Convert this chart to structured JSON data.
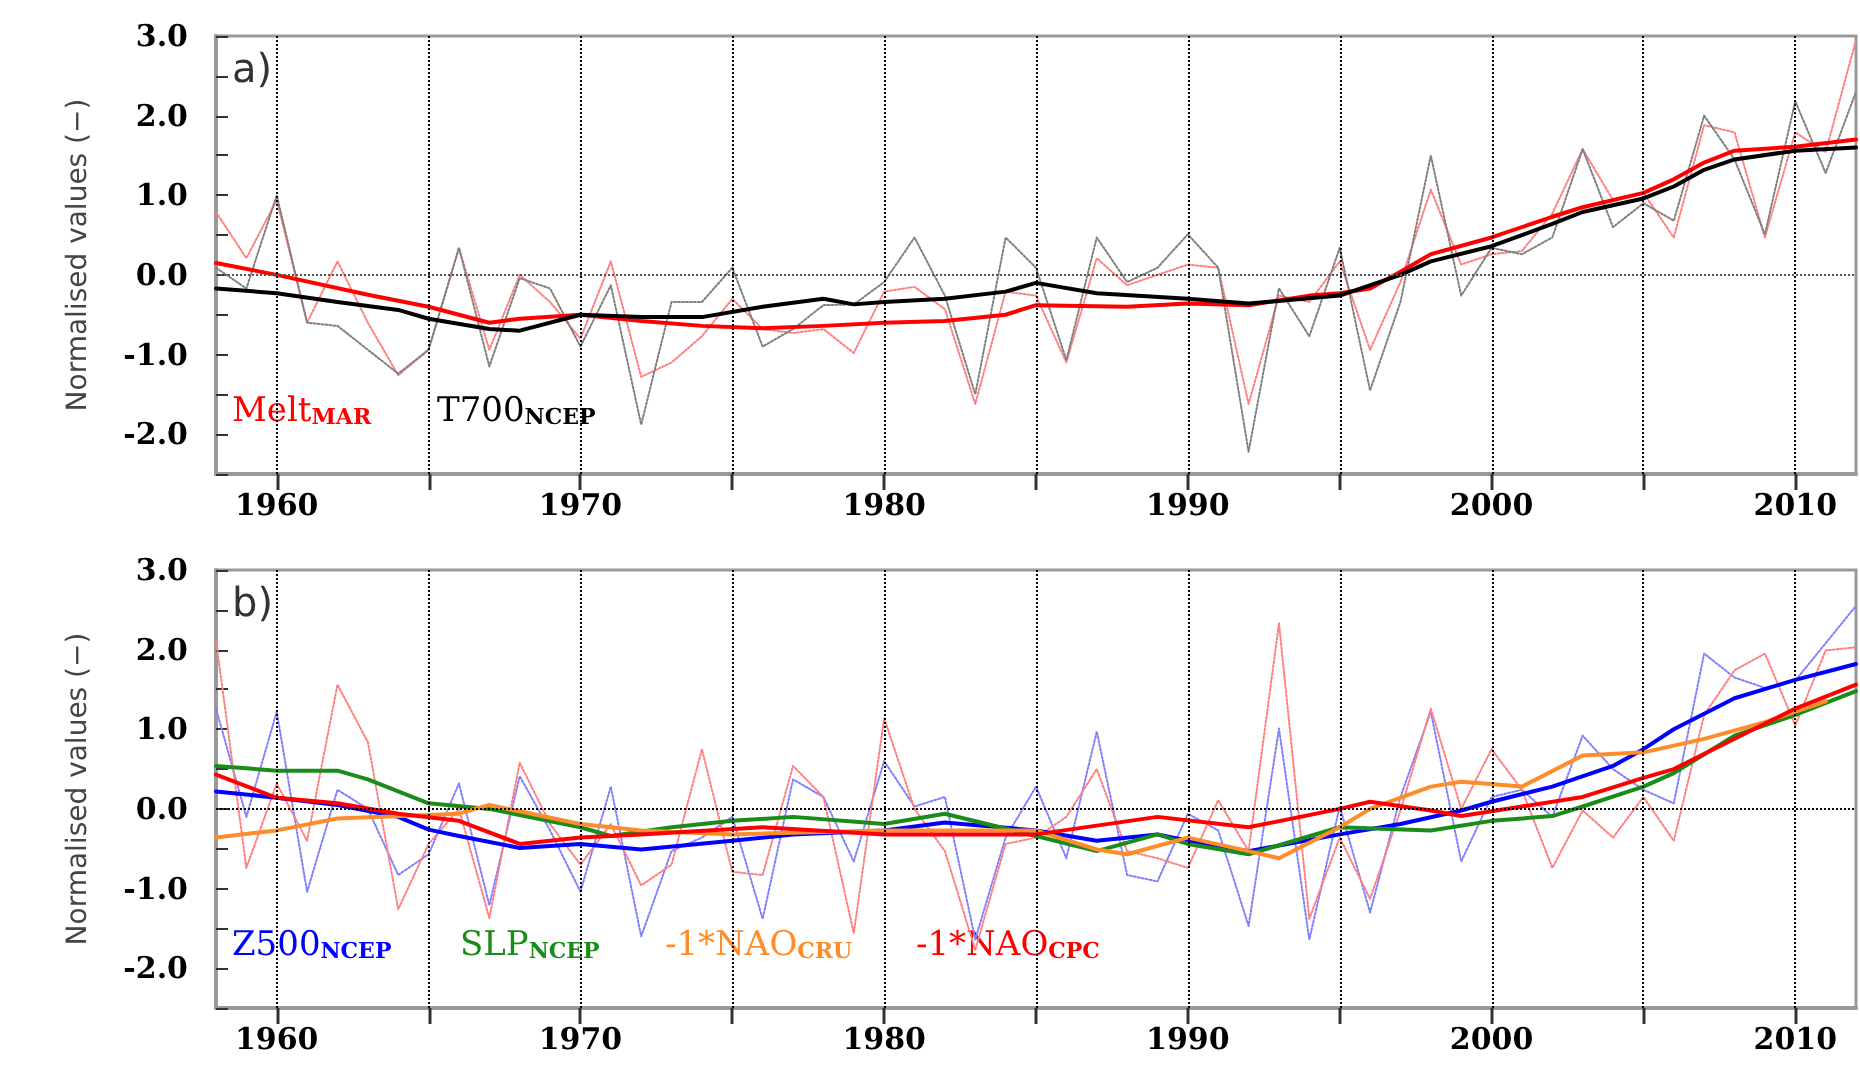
{
  "chart_data": [
    {
      "type": "line",
      "title": "a)",
      "ylabel": "Normalised values (−)",
      "xlim": [
        1958,
        2012
      ],
      "ylim": [
        -2.5,
        3.0
      ],
      "xticks": [
        1960,
        {
          "value": 1965,
          "label": null
        },
        1970,
        {
          "value": 1975,
          "label": null
        },
        1980,
        {
          "value": 1985,
          "label": null
        },
        1990,
        {
          "value": 1995,
          "label": null
        },
        2000,
        {
          "value": 2005,
          "label": null
        },
        2010
      ],
      "yticks": [
        {
          "value": -2.5,
          "label": null
        },
        {
          "value": -2,
          "label": "-2.0"
        },
        {
          "value": -1.5,
          "label": null
        },
        {
          "value": -1,
          "label": "-1.0"
        },
        {
          "value": -0.5,
          "label": null
        },
        {
          "value": 0,
          "label": "0.0"
        },
        {
          "value": 0.5,
          "label": null
        },
        {
          "value": 1,
          "label": "1.0"
        },
        {
          "value": 1.5,
          "label": null
        },
        {
          "value": 2,
          "label": "2.0"
        },
        {
          "value": 2.5,
          "label": null
        },
        {
          "value": 3,
          "label": "3.0"
        }
      ],
      "grid": "x",
      "marker": "none",
      "legend": "bottom left",
      "ref_lines": [
        {
          "axis": "y",
          "value": 0,
          "color": "#555555",
          "line_style": "dotted"
        }
      ],
      "x": [
        1958,
        1959,
        1960,
        1961,
        1962,
        1963,
        1964,
        1965,
        1966,
        1967,
        1968,
        1969,
        1970,
        1971,
        1972,
        1973,
        1974,
        1975,
        1976,
        1977,
        1978,
        1979,
        1980,
        1981,
        1982,
        1983,
        1984,
        1985,
        1986,
        1987,
        1988,
        1989,
        1990,
        1991,
        1992,
        1993,
        1994,
        1995,
        1996,
        1997,
        1998,
        1999,
        2000,
        2001,
        2002,
        2003,
        2004,
        2005,
        2006,
        2007,
        2008,
        2009,
        2010,
        2011,
        2012
      ],
      "series": [
        {
          "color": "#ff8080",
          "line_style": "dotted",
          "values": [
            0.79,
            0.21,
            0.94,
            -0.6,
            0.17,
            -0.6,
            -1.26,
            -0.94,
            0.34,
            -0.94,
            0,
            -0.34,
            -0.8,
            0.17,
            -1.28,
            -1.1,
            -0.77,
            -0.3,
            -0.68,
            -0.73,
            -0.68,
            -0.98,
            -0.21,
            -0.15,
            -0.43,
            -1.62,
            -0.21,
            -0.26,
            -1.1,
            0.21,
            -0.13,
            0,
            0.13,
            0.09,
            -1.62,
            -0.26,
            -0.34,
            0.17,
            -0.94,
            -0.09,
            1.07,
            0.13,
            0.26,
            0.3,
            0.77,
            1.58,
            0.94,
            1.03,
            0.47,
            1.88,
            1.79,
            0.47,
            1.79,
            1.54,
            2.95
          ]
        },
        {
          "color": "#808080",
          "line_style": "dotted",
          "values": [
            0.09,
            -0.17,
            1.0,
            -0.6,
            -0.64,
            -0.94,
            -1.24,
            -0.94,
            0.34,
            -1.15,
            -0.04,
            -0.17,
            -0.9,
            -0.13,
            -1.88,
            -0.34,
            -0.34,
            0.09,
            -0.9,
            -0.68,
            -0.38,
            -0.37,
            -0.09,
            0.47,
            -0.26,
            -1.5,
            0.47,
            0.09,
            -1.07,
            0.47,
            -0.09,
            0.09,
            0.51,
            0.09,
            -2.22,
            -0.17,
            -0.77,
            0.34,
            -1.45,
            -0.34,
            1.5,
            -0.26,
            0.34,
            0.26,
            0.47,
            1.58,
            0.6,
            0.9,
            0.68,
            2.0,
            1.45,
            0.51,
            2.18,
            1.28,
            2.3
          ]
        },
        {
          "name": "Melt$_{MAR}$",
          "color": "#ff0000",
          "line_style": "solid",
          "x": [
            1958,
            1960,
            1963,
            1965,
            1967,
            1968,
            1970,
            1972,
            1974,
            1976,
            1978,
            1980,
            1982,
            1984,
            1985,
            1988,
            1990,
            1992,
            1994,
            1995,
            1996,
            1997,
            1998,
            2000,
            2002,
            2003,
            2005,
            2006,
            2007,
            2008,
            2010,
            2012
          ],
          "values": [
            0.15,
            0,
            -0.25,
            -0.4,
            -0.6,
            -0.55,
            -0.5,
            -0.58,
            -0.64,
            -0.67,
            -0.64,
            -0.6,
            -0.58,
            -0.5,
            -0.38,
            -0.4,
            -0.36,
            -0.38,
            -0.26,
            -0.23,
            -0.17,
            0.04,
            0.26,
            0.47,
            0.73,
            0.85,
            1.03,
            1.2,
            1.41,
            1.56,
            1.61,
            1.7
          ]
        },
        {
          "name": "T700$_{NCEP}$",
          "color": "#000000",
          "line_style": "solid",
          "x": [
            1958,
            1960,
            1962,
            1964,
            1965,
            1967,
            1968,
            1970,
            1972,
            1974,
            1976,
            1978,
            1979,
            1980,
            1982,
            1984,
            1985,
            1987,
            1990,
            1992,
            1995,
            1997,
            1998,
            2000,
            2002,
            2003,
            2005,
            2006,
            2007,
            2008,
            2010,
            2012
          ],
          "values": [
            -0.17,
            -0.23,
            -0.34,
            -0.44,
            -0.55,
            -0.68,
            -0.7,
            -0.5,
            -0.53,
            -0.53,
            -0.4,
            -0.3,
            -0.37,
            -0.34,
            -0.3,
            -0.21,
            -0.1,
            -0.23,
            -0.3,
            -0.36,
            -0.26,
            0,
            0.17,
            0.36,
            0.64,
            0.79,
            0.96,
            1.11,
            1.32,
            1.45,
            1.56,
            1.6
          ]
        }
      ]
    },
    {
      "type": "line",
      "title": "b)",
      "ylabel": "Normalised values (−)",
      "xlim": [
        1958,
        2012
      ],
      "ylim": [
        -2.5,
        3.0
      ],
      "xticks": [
        1960,
        {
          "value": 1965,
          "label": null
        },
        1970,
        {
          "value": 1975,
          "label": null
        },
        1980,
        {
          "value": 1985,
          "label": null
        },
        1990,
        {
          "value": 1995,
          "label": null
        },
        2000,
        {
          "value": 2005,
          "label": null
        },
        2010
      ],
      "yticks": [
        {
          "value": -2.5,
          "label": null
        },
        {
          "value": -2,
          "label": "-2.0"
        },
        {
          "value": -1.5,
          "label": null
        },
        {
          "value": -1,
          "label": "-1.0"
        },
        {
          "value": -0.5,
          "label": null
        },
        {
          "value": 0,
          "label": "0.0"
        },
        {
          "value": 0.5,
          "label": null
        },
        {
          "value": 1,
          "label": "1.0"
        },
        {
          "value": 1.5,
          "label": null
        },
        {
          "value": 2,
          "label": "2.0"
        },
        {
          "value": 2.5,
          "label": null
        },
        {
          "value": 3,
          "label": "3.0"
        }
      ],
      "grid": "x",
      "marker": "none",
      "legend": "bottom left",
      "ref_lines": [
        {
          "axis": "y",
          "value": 0,
          "color": "#000000",
          "line_style": "dotted"
        }
      ],
      "x": [
        1958,
        1959,
        1960,
        1961,
        1962,
        1963,
        1964,
        1965,
        1966,
        1967,
        1968,
        1969,
        1970,
        1971,
        1972,
        1973,
        1974,
        1975,
        1976,
        1977,
        1978,
        1979,
        1980,
        1981,
        1982,
        1983,
        1984,
        1985,
        1986,
        1987,
        1988,
        1989,
        1990,
        1991,
        1992,
        1993,
        1994,
        1995,
        1996,
        1997,
        1998,
        1999,
        2000,
        2001,
        2002,
        2003,
        2004,
        2005,
        2006,
        2007,
        2008,
        2009,
        2010,
        2011,
        2012
      ],
      "series": [
        {
          "color": "#8080ff",
          "line_style": "dotted",
          "values": [
            1.26,
            -0.1,
            1.22,
            -1.04,
            0.24,
            0,
            -0.83,
            -0.57,
            0.32,
            -1.21,
            0.41,
            -0.27,
            -1.04,
            0.28,
            -1.6,
            -0.53,
            -0.36,
            -0.1,
            -1.38,
            0.37,
            0.15,
            -0.66,
            0.6,
            0.03,
            0.15,
            -1.64,
            -0.36,
            0.28,
            -0.62,
            0.97,
            -0.83,
            -0.91,
            -0.06,
            -0.27,
            -1.47,
            1.01,
            -1.64,
            0.03,
            -1.3,
            0.15,
            1.22,
            -0.66,
            0.15,
            0.24,
            -0.1,
            0.92,
            0.5,
            0.24,
            0.07,
            1.95,
            1.65,
            1.52,
            1.61,
            2.08,
            2.55
          ]
        },
        {
          "color": "#ff8080",
          "line_style": "dotted",
          "values": [
            2.12,
            -0.74,
            0.32,
            -0.4,
            1.56,
            0.84,
            -1.26,
            -0.44,
            0,
            -1.37,
            0.58,
            -0.19,
            -0.7,
            -0.19,
            -0.96,
            -0.7,
            0.75,
            -0.79,
            -0.83,
            0.54,
            0.15,
            -1.56,
            1.14,
            0,
            -0.53,
            -1.77,
            -0.44,
            -0.36,
            -0.1,
            0.5,
            -0.53,
            -0.62,
            -0.74,
            0.11,
            -0.53,
            2.33,
            -1.38,
            -0.36,
            -1.13,
            -0.02,
            1.26,
            0,
            0.75,
            0.24,
            -0.74,
            -0.02,
            -0.36,
            0.15,
            -0.4,
            1.18,
            1.74,
            1.95,
            1.05,
            1.99,
            2.03
          ]
        },
        {
          "name": "Z500$_{NCEP}$",
          "color": "#0000ff",
          "line_style": "solid",
          "x": [
            1958,
            1960,
            1962,
            1964,
            1965,
            1966,
            1968,
            1970,
            1972,
            1975,
            1977,
            1980,
            1982,
            1985,
            1987,
            1989,
            1990,
            1992,
            1995,
            1997,
            1999,
            2000,
            2002,
            2004,
            2005,
            2006,
            2008,
            2010,
            2012
          ],
          "values": [
            0.22,
            0.14,
            0.05,
            -0.1,
            -0.26,
            -0.34,
            -0.49,
            -0.44,
            -0.51,
            -0.4,
            -0.32,
            -0.27,
            -0.17,
            -0.27,
            -0.4,
            -0.32,
            -0.4,
            -0.53,
            -0.32,
            -0.19,
            -0.02,
            0.09,
            0.28,
            0.54,
            0.75,
            1.0,
            1.39,
            1.62,
            1.82
          ]
        },
        {
          "name": "SLP$_{NCEP}$",
          "color": "#1a8c1a",
          "line_style": "solid",
          "x": [
            1958,
            1960,
            1962,
            1963,
            1965,
            1967,
            1970,
            1971,
            1973,
            1975,
            1977,
            1980,
            1982,
            1985,
            1987,
            1989,
            1990,
            1992,
            1995,
            1998,
            2000,
            2002,
            2003,
            2005,
            2006,
            2008,
            2010,
            2012
          ],
          "values": [
            0.54,
            0.48,
            0.48,
            0.37,
            0.07,
            0,
            -0.23,
            -0.34,
            -0.23,
            -0.15,
            -0.1,
            -0.19,
            -0.06,
            -0.34,
            -0.53,
            -0.32,
            -0.44,
            -0.57,
            -0.23,
            -0.27,
            -0.15,
            -0.09,
            0.03,
            0.28,
            0.45,
            0.92,
            1.18,
            1.48
          ]
        },
        {
          "name": "-1*NAO$_{CRU}$",
          "color": "#ff8c2a",
          "line_style": "solid",
          "x": [
            1958,
            1960,
            1962,
            1966,
            1967,
            1970,
            1972,
            1975,
            1980,
            1985,
            1987,
            1988,
            1990,
            1992,
            1993,
            1995,
            1996,
            1998,
            1999,
            2001,
            2003,
            2005,
            2007,
            2009,
            2011
          ],
          "values": [
            -0.36,
            -0.27,
            -0.12,
            -0.06,
            0.05,
            -0.19,
            -0.27,
            -0.32,
            -0.27,
            -0.27,
            -0.51,
            -0.57,
            -0.36,
            -0.53,
            -0.62,
            -0.23,
            0,
            0.28,
            0.34,
            0.28,
            0.67,
            0.71,
            0.88,
            1.09,
            1.35
          ]
        },
        {
          "name": "-1*NAO$_{CPC}$",
          "color": "#ff0000",
          "line_style": "solid",
          "x": [
            1958,
            1960,
            1962,
            1964,
            1966,
            1968,
            1970,
            1972,
            1976,
            1980,
            1985,
            1989,
            1992,
            1995,
            1996,
            1998,
            1999,
            2001,
            2003,
            2005,
            2006,
            2008,
            2010,
            2012
          ],
          "values": [
            0.43,
            0.14,
            0.07,
            -0.06,
            -0.15,
            -0.44,
            -0.36,
            -0.32,
            -0.23,
            -0.32,
            -0.32,
            -0.1,
            -0.23,
            0,
            0.09,
            -0.02,
            -0.09,
            0.03,
            0.15,
            0.39,
            0.5,
            0.88,
            1.26,
            1.56
          ]
        }
      ]
    }
  ]
}
